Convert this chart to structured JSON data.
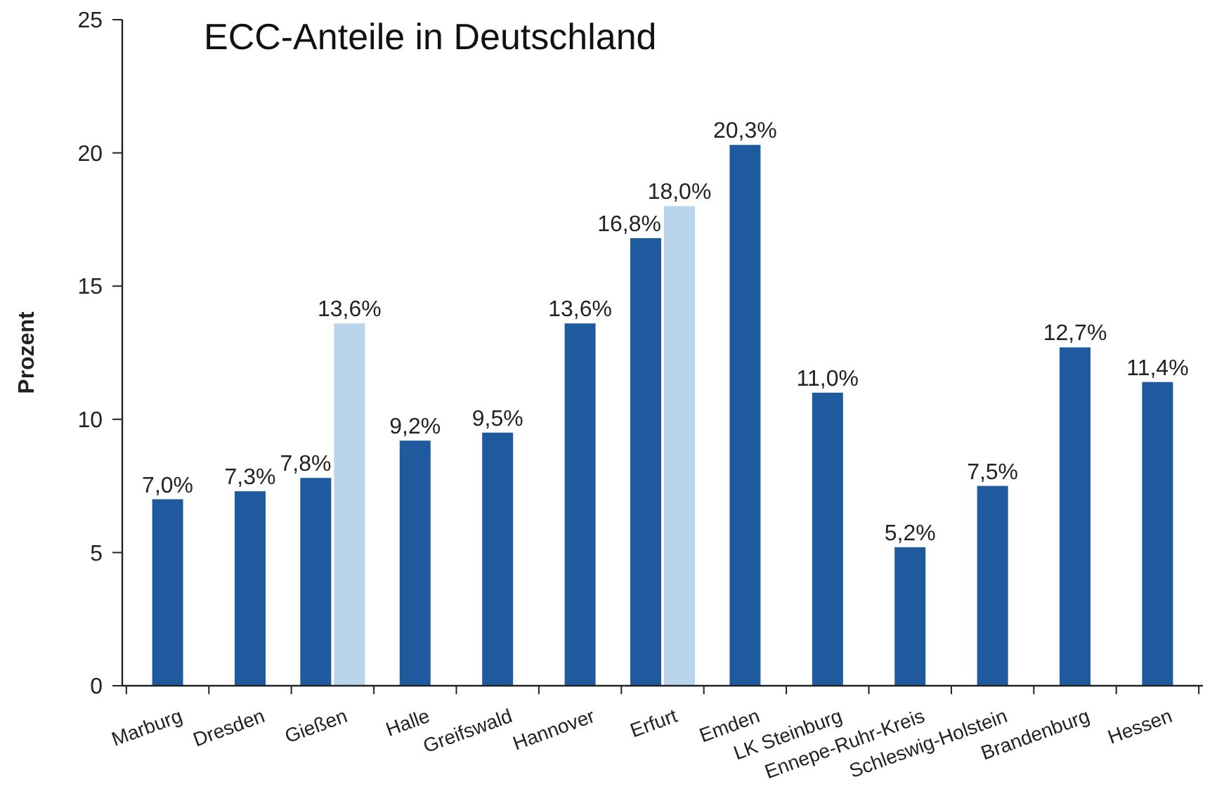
{
  "chart_data": {
    "type": "bar",
    "title": "ECC-Anteile in Deutschland",
    "ylabel": "Prozent",
    "categories": [
      "Marburg",
      "Dresden",
      "Gießen",
      "Halle",
      "Greifswald",
      "Hannover",
      "Erfurt",
      "Emden",
      "LK Steinburg",
      "Ennepe-Ruhr-Kreis",
      "Schleswig-Holstein",
      "Brandenburg",
      "Hessen"
    ],
    "series": [
      {
        "color": "#1f5a9e",
        "values": [
          7.0,
          7.3,
          7.8,
          9.2,
          9.5,
          13.6,
          16.8,
          20.3,
          11.0,
          5.2,
          7.5,
          12.7,
          11.4
        ],
        "value_labels": [
          "7,0%",
          "7,3%",
          "7,8%",
          "9,2%",
          "9,5%",
          "13,6%",
          "16,8%",
          "20,3%",
          "11,0%",
          "5,2%",
          "7,5%",
          "12,7%",
          "11,4%"
        ]
      },
      {
        "color": "#b9d5ec",
        "values": [
          null,
          null,
          13.6,
          null,
          null,
          null,
          18.0,
          null,
          null,
          null,
          null,
          null,
          null
        ],
        "value_labels": [
          null,
          null,
          "13,6%",
          null,
          null,
          null,
          "18,0%",
          null,
          null,
          null,
          null,
          null,
          null
        ]
      }
    ],
    "ylim": [
      0,
      25
    ],
    "yticks": [
      0,
      5,
      10,
      15,
      20,
      25
    ],
    "grid": false
  }
}
